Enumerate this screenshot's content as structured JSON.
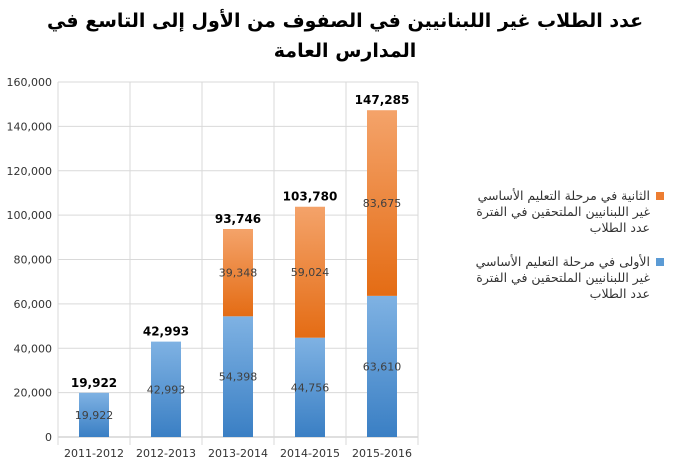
{
  "chart_data": {
    "type": "bar",
    "stacked": true,
    "title": "عدد الطلاب غير اللبنانيين في الصفوف من الأول إلى التاسع في المدارس العامة",
    "title_lines": [
      "عدد الطلاب غير اللبنانيين في الصفوف من الأول إلى التاسع في",
      "المدارس العامة"
    ],
    "categories": [
      "2011-2012",
      "2012-2013",
      "2013-2014",
      "2014-2015",
      "2015-2016"
    ],
    "series": [
      {
        "name": "عدد الطلاب غير اللبنانيين الملتحقين في الفترة الأولى في مرحلة التعليم الأساسي",
        "legend_lines": [
          "الأولى في مرحلة التعليم الأساسي",
          "غير اللبنانيين الملتحقين في الفترة",
          "عدد الطلاب"
        ],
        "color": "#5b9bd5",
        "values": [
          19922,
          42993,
          54398,
          44756,
          63610
        ],
        "labels": [
          "19,922",
          "42,993",
          "54,398",
          "44,756",
          "63,610"
        ]
      },
      {
        "name": "عدد الطلاب غير اللبنانيين الملتحقين في الفترة الثانية في مرحلة التعليم الأساسي",
        "legend_lines": [
          "الثانية في مرحلة التعليم الأساسي",
          "غير اللبنانيين الملتحقين في الفترة",
          "عدد الطلاب"
        ],
        "color": "#ed7d31",
        "values": [
          0,
          0,
          39348,
          59024,
          83675
        ],
        "labels": [
          "",
          "",
          "39,348",
          "59,024",
          "83,675"
        ]
      }
    ],
    "totals": [
      "19,922",
      "42,993",
      "93,746",
      "103,780",
      "147,285"
    ],
    "total_values": [
      19922,
      42993,
      93746,
      103780,
      147285
    ],
    "ylim": [
      0,
      160000
    ],
    "yticks": [
      0,
      20000,
      40000,
      60000,
      80000,
      100000,
      120000,
      140000,
      160000
    ],
    "ytick_labels": [
      "0",
      "20,000",
      "40,000",
      "60,000",
      "80,000",
      "100,000",
      "120,000",
      "140,000",
      "160,000"
    ],
    "grid": true,
    "legend_position": "right",
    "xlabel": "",
    "ylabel": ""
  }
}
